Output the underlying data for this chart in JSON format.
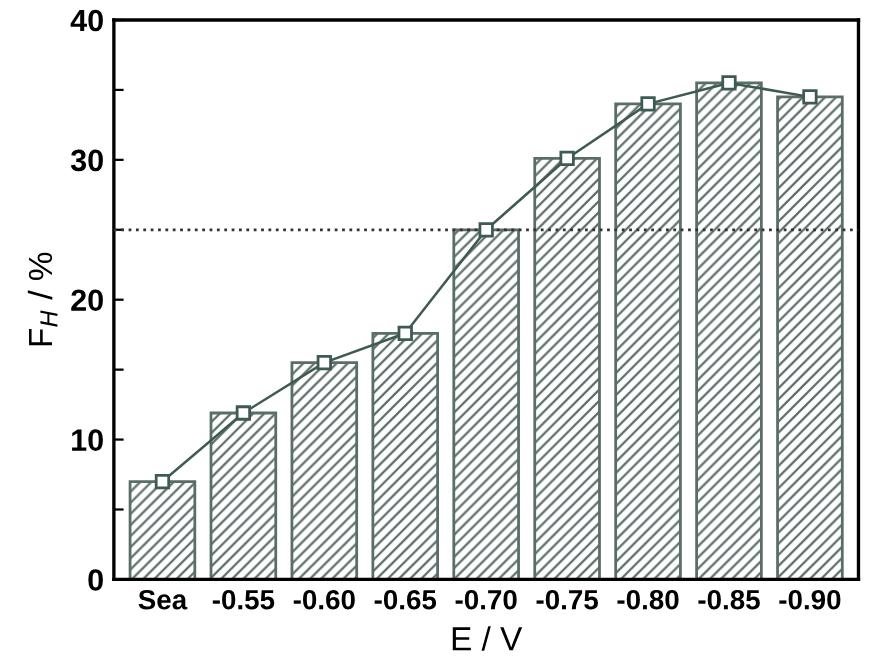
{
  "chart_data": {
    "type": "bar",
    "xlabel": "E / V",
    "ylabel": "F$_{H}$ / %",
    "categories": [
      "Sea",
      "-0.55",
      "-0.60",
      "-0.65",
      "-0.70",
      "-0.75",
      "-0.80",
      "-0.85",
      "-0.90"
    ],
    "series": [
      {
        "color": "#5a6e66",
        "values": [
          7.0,
          11.9,
          15.5,
          17.6,
          25.0,
          30.1,
          34.0,
          35.5,
          34.5
        ]
      },
      {
        "type": "line",
        "color": "#3f5a55",
        "marker": "square",
        "line_style": "solid",
        "values": [
          7.0,
          11.9,
          15.5,
          17.6,
          25.0,
          30.1,
          34.0,
          35.5,
          34.5
        ]
      }
    ],
    "ylim": [
      0,
      40
    ],
    "yticks": [
      0,
      {
        "value": 5,
        "label": null
      },
      10,
      {
        "value": 15,
        "label": null
      },
      20,
      {
        "value": 25,
        "label": null
      },
      30,
      {
        "value": 35,
        "label": null
      },
      40
    ],
    "ref_lines": [
      {
        "axis": "y",
        "value": 25,
        "color": "#333333",
        "line_style": "dotted"
      }
    ],
    "grid": false,
    "legend": false
  }
}
